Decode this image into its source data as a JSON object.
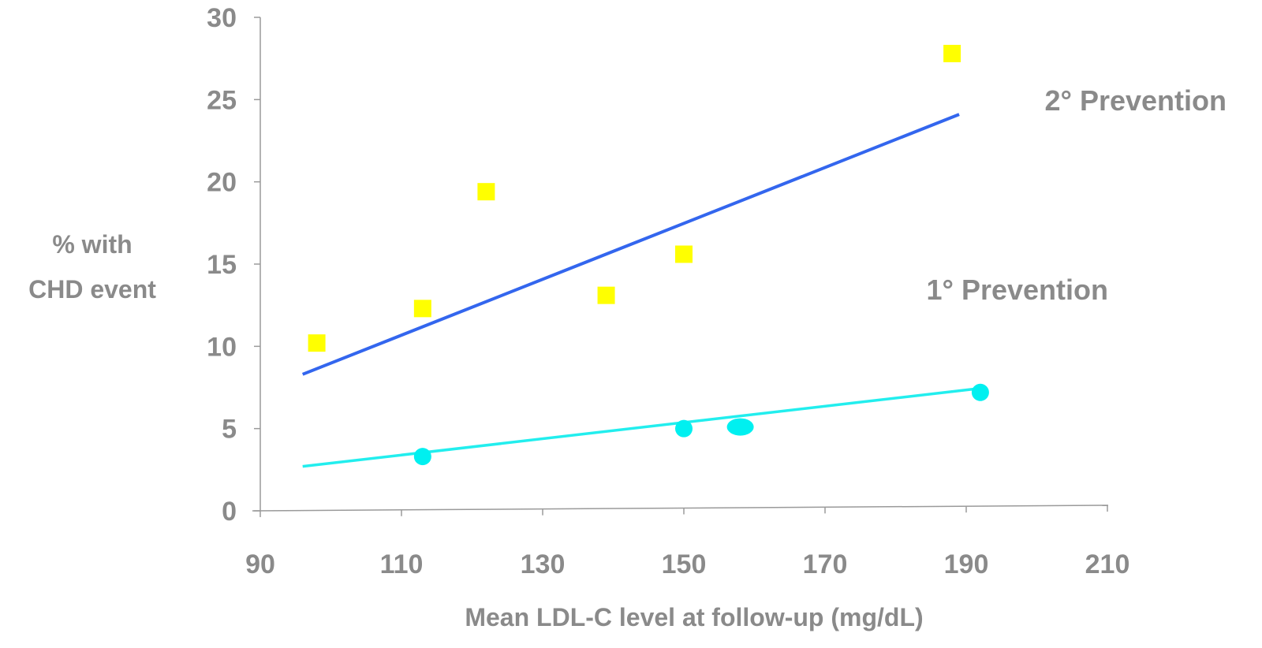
{
  "chart_data": {
    "type": "scatter",
    "xlabel": "Mean LDL-C level at follow-up (mg/dL)",
    "ylabel": [
      "% with",
      "CHD event"
    ],
    "xlim": [
      90,
      210
    ],
    "ylim": [
      0,
      30
    ],
    "x_ticks": [
      "90",
      "110",
      "130",
      "150",
      "170",
      "190",
      "210"
    ],
    "y_ticks": [
      "0",
      "5",
      "10",
      "15",
      "20",
      "25",
      "30"
    ],
    "grid": false,
    "series": [
      {
        "name": "2° Prevention",
        "marker": "square",
        "color": "#ffff00",
        "points": [
          {
            "x": 98,
            "y": 10.2
          },
          {
            "x": 113,
            "y": 12.3
          },
          {
            "x": 122,
            "y": 19.4
          },
          {
            "x": 139,
            "y": 13.1
          },
          {
            "x": 150,
            "y": 15.6
          },
          {
            "x": 188,
            "y": 27.8
          }
        ],
        "trend": {
          "color": "#3366ee",
          "x": [
            96,
            189
          ],
          "y": [
            8.3,
            24.1
          ]
        }
      },
      {
        "name": "1° Prevention",
        "marker": "circle",
        "color": "#00f0f0",
        "points": [
          {
            "x": 113,
            "y": 3.3
          },
          {
            "x": 150,
            "y": 5.0
          },
          {
            "x": 158,
            "y": 5.1
          },
          {
            "x": 192,
            "y": 7.2
          }
        ],
        "trend": {
          "color": "#22eeee",
          "x": [
            96,
            191
          ],
          "y": [
            2.7,
            7.4
          ]
        }
      }
    ]
  }
}
